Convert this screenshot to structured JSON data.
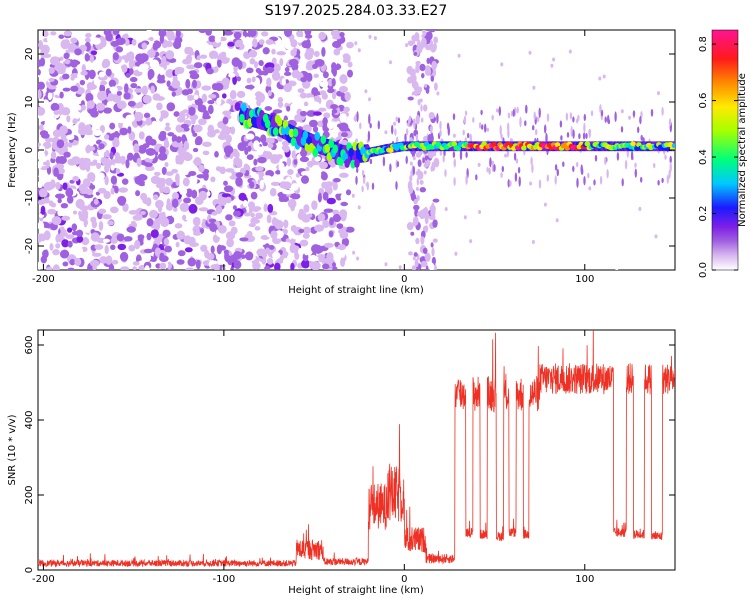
{
  "title": "S197.2025.284.03.33.E27",
  "chart_data": [
    {
      "type": "heatmap",
      "xlabel": "Height of straight line (km)",
      "ylabel": "Frequency (Hz)",
      "xlim": [
        -203,
        150
      ],
      "ylim": [
        -25,
        25
      ],
      "xticks": [
        -200,
        -100,
        0,
        100
      ],
      "yticks": [
        20,
        10,
        0,
        -10,
        -20
      ],
      "colorbar": {
        "label": "Normalized spectral amplitude",
        "range": [
          0,
          0.85
        ],
        "ticks": [
          0.0,
          0.2,
          0.4,
          0.6,
          0.8
        ],
        "colors": [
          "#ffffff",
          "#d9b8f0",
          "#a061e0",
          "#7d1fe6",
          "#1a1aff",
          "#00c8ff",
          "#00ff7a",
          "#a6ff00",
          "#ffea00",
          "#ff8a00",
          "#ff1a1a",
          "#ff1493"
        ]
      },
      "ridge": [
        {
          "x": -88,
          "f": 7
        },
        {
          "x": -80,
          "f": 6.2
        },
        {
          "x": -72,
          "f": 5.2
        },
        {
          "x": -65,
          "f": 3.8
        },
        {
          "x": -58,
          "f": 2.6
        },
        {
          "x": -50,
          "f": 1.4
        },
        {
          "x": -42,
          "f": 0.4
        },
        {
          "x": -34,
          "f": -0.8
        },
        {
          "x": -28,
          "f": -1.0
        },
        {
          "x": -20,
          "f": -0.6
        },
        {
          "x": -10,
          "f": 0.2
        },
        {
          "x": 0,
          "f": 0.8
        },
        {
          "x": 150,
          "f": 0.8
        }
      ]
    },
    {
      "type": "line",
      "xlabel": "Height of straight line (km)",
      "ylabel": "SNR (10 * v/v)",
      "xlim": [
        -203,
        150
      ],
      "ylim": [
        0,
        640
      ],
      "xticks": [
        -200,
        -100,
        0,
        100
      ],
      "yticks": [
        0,
        200,
        400,
        600
      ],
      "color": "#ee3124",
      "segments": [
        {
          "x0": -203,
          "x1": -60,
          "mean": 18,
          "noise": 12
        },
        {
          "x0": -60,
          "x1": -45,
          "mean": 55,
          "noise": 40
        },
        {
          "x0": -45,
          "x1": -20,
          "mean": 22,
          "noise": 14
        },
        {
          "x0": -20,
          "x1": -10,
          "mean": 170,
          "noise": 90
        },
        {
          "x0": -10,
          "x1": 0,
          "mean": 200,
          "noise": 110
        },
        {
          "x0": 0,
          "x1": 12,
          "mean": 80,
          "noise": 50
        },
        {
          "x0": 12,
          "x1": 28,
          "mean": 30,
          "noise": 18
        },
        {
          "x0": 28,
          "x1": 75,
          "mean": 470,
          "noise": 70
        },
        {
          "x0": 75,
          "x1": 150,
          "mean": 510,
          "noise": 60
        }
      ],
      "dropouts": [
        {
          "x0": 34,
          "x1": 38,
          "level": 100
        },
        {
          "x0": 42,
          "x1": 46,
          "level": 95
        },
        {
          "x0": 51,
          "x1": 55,
          "level": 90
        },
        {
          "x0": 58,
          "x1": 62,
          "level": 100
        },
        {
          "x0": 66,
          "x1": 69,
          "level": 95
        },
        {
          "x0": 116,
          "x1": 123,
          "level": 100
        },
        {
          "x0": 127,
          "x1": 133,
          "level": 95
        },
        {
          "x0": 137,
          "x1": 143,
          "level": 90
        }
      ]
    }
  ]
}
